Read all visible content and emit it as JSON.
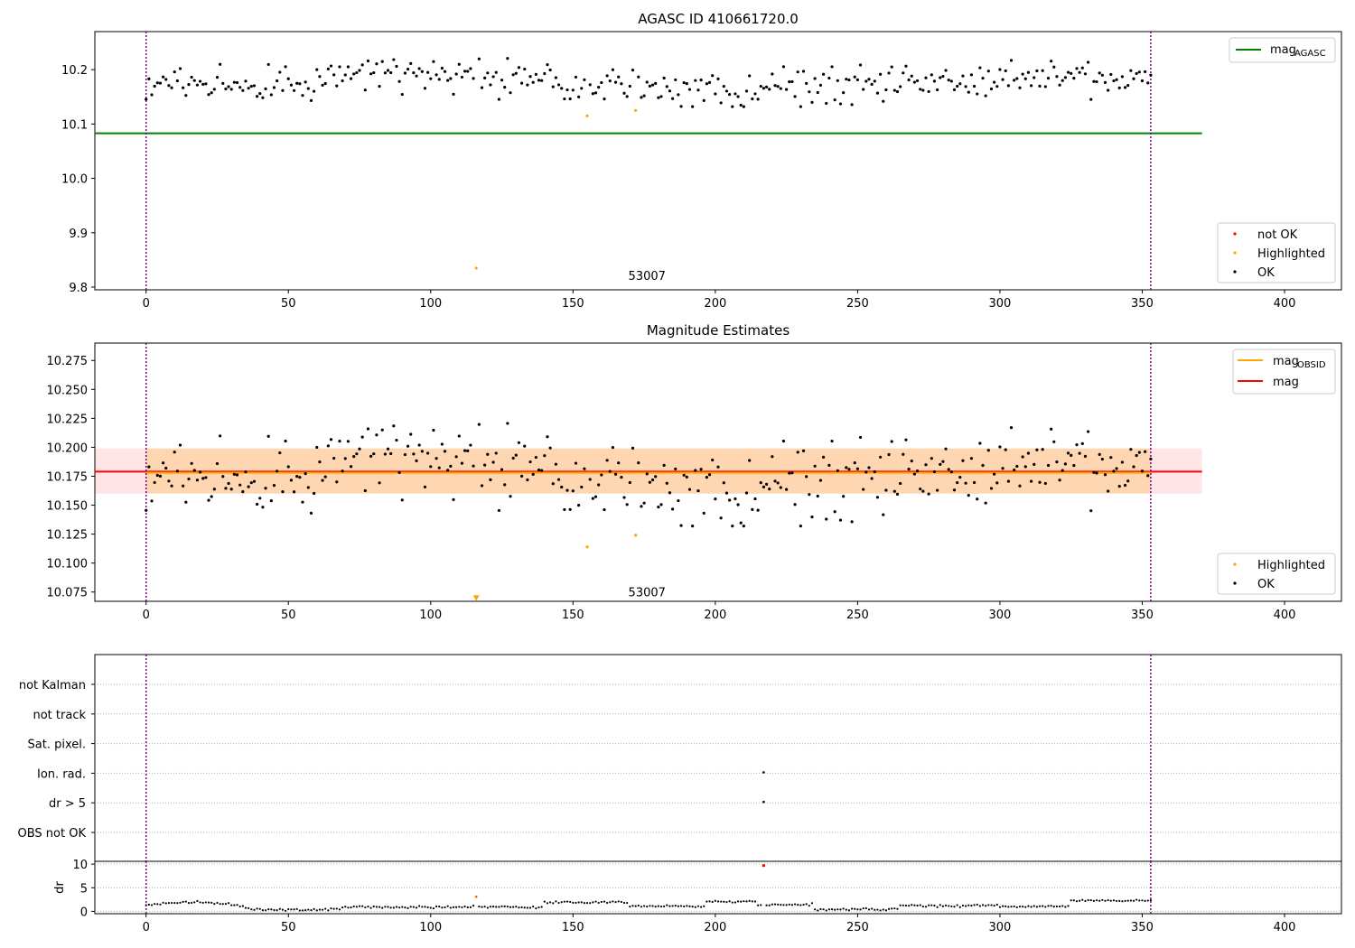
{
  "chart_data": [
    {
      "type": "scatter",
      "title": "AGASC ID 410661720.0",
      "xlim": [
        -18,
        420
      ],
      "ylim": [
        9.795,
        10.27
      ],
      "xticks": [
        0,
        50,
        100,
        150,
        200,
        250,
        300,
        350,
        400
      ],
      "yticks": [
        9.8,
        9.9,
        10.0,
        10.1,
        10.2
      ],
      "ytick_decimals": 1,
      "vlines": [
        0,
        353
      ],
      "hlines": [
        {
          "label": "mag_AGASC",
          "y": 10.083,
          "x0": -18,
          "x1": 371,
          "color": "#008000"
        }
      ],
      "annotation": {
        "text": "53007",
        "x": 176,
        "y": 9.81
      },
      "legend_lines": [
        {
          "base": "mag",
          "sub": "AGASC",
          "color": "#008000"
        }
      ],
      "legend_points": [
        {
          "label": "not OK",
          "color": "#ff0000"
        },
        {
          "label": "Highlighted",
          "color": "#ffa500"
        },
        {
          "label": "OK",
          "color": "#000000"
        }
      ],
      "highlighted": [
        {
          "x": 116,
          "y": 9.835
        },
        {
          "x": 155,
          "y": 10.115
        },
        {
          "x": 172,
          "y": 10.125
        }
      ]
    },
    {
      "type": "scatter",
      "title": "Magnitude Estimates",
      "xlim": [
        -18,
        420
      ],
      "ylim": [
        10.067,
        10.29
      ],
      "xticks": [
        0,
        50,
        100,
        150,
        200,
        250,
        300,
        350,
        400
      ],
      "yticks": [
        10.075,
        10.1,
        10.125,
        10.15,
        10.175,
        10.2,
        10.225,
        10.25,
        10.275
      ],
      "ytick_decimals": 3,
      "vlines": [
        0,
        353
      ],
      "band": {
        "x0": -18,
        "x1": 371,
        "y0": 10.16,
        "y1": 10.199
      },
      "hlines": [
        {
          "label": "mag",
          "y": 10.179,
          "x0": -18,
          "x1": 371,
          "color": "#ff0000"
        },
        {
          "label": "mag_OBSID",
          "y": 10.178,
          "x0": 0,
          "x1": 353,
          "color": "#ffa500"
        }
      ],
      "annotation": {
        "text": "53007",
        "x": 176,
        "y": 10.073
      },
      "legend_lines": [
        {
          "base": "mag",
          "sub": "OBSID",
          "color": "#ffa500"
        },
        {
          "base": "mag",
          "sub": "",
          "color": "#ff0000"
        }
      ],
      "legend_points": [
        {
          "label": "Highlighted",
          "color": "#ffa500"
        },
        {
          "label": "OK",
          "color": "#000000"
        }
      ],
      "highlighted": [
        {
          "x": 155,
          "y": 10.114
        },
        {
          "x": 172,
          "y": 10.124
        }
      ],
      "offscale_marker": {
        "x": 116,
        "y": 10.069,
        "color": "#ffa500"
      }
    },
    {
      "type": "scatter",
      "xlim": [
        -18,
        420
      ],
      "xticks": [
        0,
        50,
        100,
        150,
        200,
        250,
        300,
        350,
        400
      ],
      "vlines": [
        0,
        353
      ],
      "flag_categories": [
        "not Kalman",
        "not track",
        "Sat. pixel.",
        "Ion. rad.",
        "dr > 5",
        "OBS not OK"
      ],
      "flag_points": [
        {
          "category": "Ion. rad.",
          "x": 217
        },
        {
          "category": "dr > 5",
          "x": 217
        }
      ],
      "dr": {
        "ylabel": "dr",
        "ylim": [
          -0.5,
          10.6
        ],
        "yticks": [
          0,
          5,
          10
        ],
        "highlighted": [
          {
            "x": 116,
            "y": 3.1
          }
        ],
        "not_ok": [
          {
            "x": 217,
            "y": 9.7
          }
        ]
      }
    }
  ]
}
